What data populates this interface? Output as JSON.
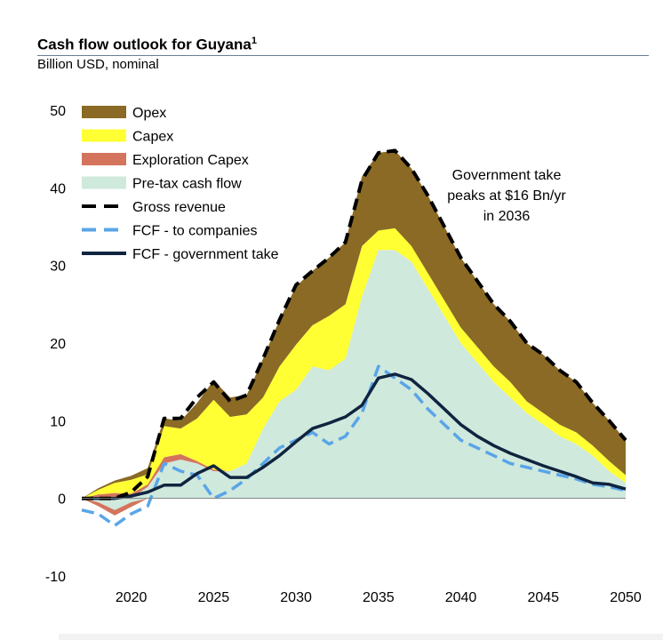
{
  "title": "Cash flow outlook for Guyana",
  "title_footnote": "1",
  "subtitle": "Billion USD, nominal",
  "annotation": [
    "Government take",
    "peaks at $16 Bn/yr",
    "in 2036"
  ],
  "colors": {
    "opex": "#8a6a24",
    "capex": "#ffff33",
    "exploration": "#d4745c",
    "pretax": "#cfe9dd",
    "gross": "#000000",
    "fcf_companies": "#5aa5e8",
    "fcf_government": "#10243f"
  },
  "chart_data": {
    "type": "area",
    "title": "Cash flow outlook for Guyana",
    "ylabel": "Billion USD, nominal",
    "ylim": [
      -10,
      50
    ],
    "yticks": [
      -10,
      0,
      10,
      20,
      30,
      40,
      50
    ],
    "xlim": [
      2017,
      2050
    ],
    "xticks": [
      2020,
      2025,
      2030,
      2035,
      2040,
      2045,
      2050
    ],
    "x": [
      2017,
      2018,
      2019,
      2020,
      2021,
      2022,
      2023,
      2024,
      2025,
      2026,
      2027,
      2028,
      2029,
      2030,
      2031,
      2032,
      2033,
      2034,
      2035,
      2036,
      2037,
      2038,
      2039,
      2040,
      2041,
      2042,
      2043,
      2044,
      2045,
      2046,
      2047,
      2048,
      2049,
      2050
    ],
    "legend_position": "top-left",
    "series": [
      {
        "name": "Pre-tax cash flow",
        "type": "area",
        "values": [
          0,
          -0.5,
          -1.5,
          -0.5,
          1.5,
          4.5,
          5,
          4.5,
          3.5,
          3.5,
          4.5,
          9,
          12.5,
          14,
          17,
          16.5,
          18,
          26,
          32,
          32,
          30.5,
          27,
          23.5,
          20,
          17.5,
          15,
          13,
          11,
          9.5,
          8,
          7,
          5.5,
          3.5,
          2
        ]
      },
      {
        "name": "Exploration Capex",
        "type": "area",
        "values": [
          0,
          0.5,
          0.7,
          0.6,
          0.3,
          0.8,
          0.7,
          0.3,
          0.2,
          0,
          0,
          0,
          0,
          0,
          0,
          0,
          0,
          0,
          0,
          0,
          0,
          0,
          0,
          0,
          0,
          0,
          0,
          0,
          0,
          0,
          0,
          0,
          0,
          0
        ]
      },
      {
        "name": "Capex",
        "type": "area",
        "values": [
          0,
          0.6,
          1.3,
          1.8,
          1.3,
          4,
          3.3,
          5.5,
          9,
          7,
          6.3,
          4,
          4.5,
          5.8,
          5.3,
          7,
          7,
          6.5,
          2.5,
          2.8,
          2,
          2,
          2,
          2,
          2,
          2,
          2,
          1.5,
          1.5,
          1.5,
          1.5,
          1.3,
          1.3,
          1
        ]
      },
      {
        "name": "Opex",
        "type": "area",
        "values": [
          0,
          0.2,
          0.3,
          0.5,
          0.8,
          1,
          1,
          2,
          2.5,
          2.5,
          2.5,
          5,
          6,
          7.5,
          7,
          7.5,
          8,
          9,
          10,
          10,
          10,
          10,
          9.5,
          9,
          8.5,
          8,
          7.8,
          7.5,
          7.5,
          7,
          6.5,
          5.5,
          5.2,
          4.5
        ]
      },
      {
        "name": "Gross revenue",
        "type": "line",
        "style": "dashed",
        "values": [
          0,
          0,
          0,
          0.8,
          2.8,
          10.3,
          10.3,
          13,
          15,
          12.5,
          13.3,
          18,
          23,
          27.5,
          29.3,
          31,
          33,
          41,
          44.5,
          44.8,
          42.5,
          39,
          35,
          31,
          28,
          25,
          22.8,
          20,
          18.5,
          16.5,
          15,
          12.3,
          10,
          7.5
        ]
      },
      {
        "name": "FCF - to companies",
        "type": "line",
        "style": "dashed",
        "values": [
          -1.5,
          -2,
          -3.5,
          -2,
          -1,
          4.5,
          3.5,
          3,
          0,
          1,
          2.5,
          4.5,
          6.5,
          7.5,
          8.5,
          7,
          8,
          11,
          17,
          15.5,
          14,
          11.5,
          9.5,
          7.5,
          6.5,
          5.5,
          4.5,
          4,
          3.5,
          3,
          2.5,
          1.8,
          1.5,
          1
        ]
      },
      {
        "name": "FCF - government take",
        "type": "line",
        "style": "solid",
        "values": [
          0,
          0,
          0,
          0.3,
          0.8,
          1.7,
          1.7,
          3.2,
          4.2,
          2.7,
          2.7,
          4,
          5.5,
          7.3,
          9,
          9.7,
          10.5,
          12,
          15.5,
          16,
          15.3,
          13.5,
          11.5,
          9.5,
          8,
          6.8,
          5.8,
          5,
          4.2,
          3.5,
          2.8,
          2,
          1.8,
          1.2
        ]
      }
    ]
  }
}
